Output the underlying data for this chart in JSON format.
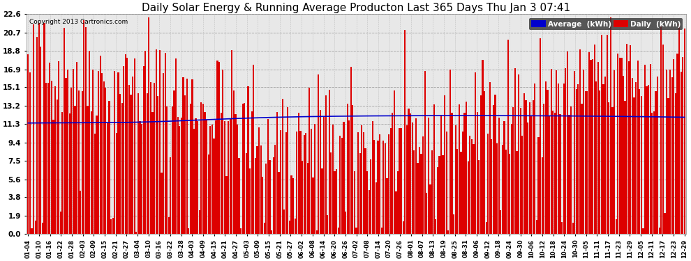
{
  "title": "Daily Solar Energy & Running Average Producton Last 365 Days Thu Jan 3 07:41",
  "copyright": "Copyright 2013 Cartronics.com",
  "legend_avg": "Average  (kWh)",
  "legend_daily": "Daily  (kWh)",
  "ylim": [
    0.0,
    22.6
  ],
  "yticks": [
    0.0,
    1.9,
    3.8,
    5.6,
    7.5,
    9.4,
    11.3,
    13.2,
    15.1,
    16.9,
    18.8,
    20.7,
    22.6
  ],
  "bar_color": "#dd0000",
  "avg_line_color": "#0000cc",
  "background_color": "#ffffff",
  "plot_bg_color": "#f0f0f0",
  "title_fontsize": 11,
  "grid_color": "#aaaaaa",
  "xtick_labels": [
    "01-04",
    "01-10",
    "01-16",
    "01-22",
    "01-28",
    "02-03",
    "02-09",
    "02-15",
    "02-21",
    "02-27",
    "03-04",
    "03-10",
    "03-16",
    "03-22",
    "03-28",
    "04-03",
    "04-09",
    "04-15",
    "04-21",
    "04-27",
    "05-03",
    "05-09",
    "05-15",
    "05-21",
    "05-27",
    "06-02",
    "06-08",
    "06-14",
    "06-20",
    "06-26",
    "07-02",
    "07-08",
    "07-14",
    "07-20",
    "07-26",
    "08-01",
    "08-07",
    "08-13",
    "08-19",
    "08-25",
    "08-31",
    "09-06",
    "09-12",
    "09-18",
    "09-24",
    "09-30",
    "10-06",
    "10-12",
    "10-18",
    "10-24",
    "10-30",
    "11-05",
    "11-11",
    "11-17",
    "11-23",
    "11-29",
    "12-05",
    "12-11",
    "12-17",
    "12-23",
    "12-29"
  ]
}
